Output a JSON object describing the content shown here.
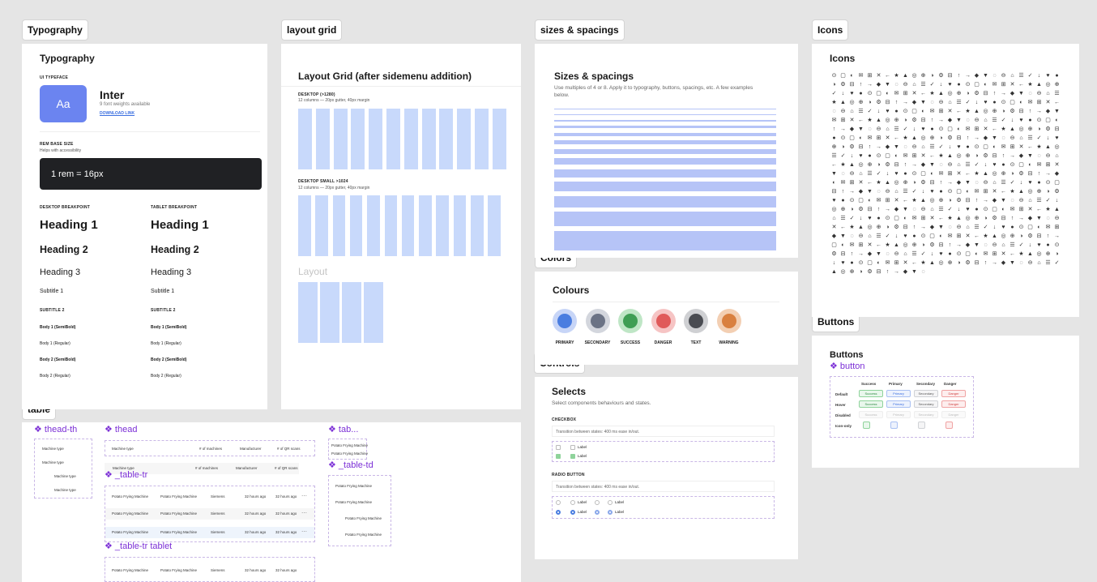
{
  "labels": {
    "typography": "Typography",
    "layout_grid": "layout grid",
    "sizes": "sizes & spacings",
    "icons": "Icons",
    "colors": "Colors",
    "controls": "Controls",
    "buttons": "Buttons",
    "table": "table"
  },
  "typography": {
    "title": "Typography",
    "ui_typeface": "UI TYPEFACE",
    "aa": "Aa",
    "font_name": "Inter",
    "font_weights": "9 font weights available",
    "download": "DOWNLOAD LINK",
    "rem_title": "REM BASE SIZE",
    "rem_sub": "Helps with accessibility",
    "rem_value": "1 rem  = 16px",
    "desktop_bp": "DESKTOP BREAKPOINT",
    "tablet_bp": "TABLET BREAKPOINT",
    "h1": "Heading 1",
    "h2": "Heading 2",
    "h3": "Heading 3",
    "subtitle1": "Subtitle 1",
    "subtitle2": "SUBTITLE 2",
    "body1_semibold": "Body 1 (SemiBold)",
    "body1_regular": "Body 1 (Regular)",
    "body2_semibold": "Body 2 (SemiBold)",
    "body2_regular": "Body 2 (Regular)"
  },
  "layout_grid": {
    "title": "Layout Grid (after sidemenu addition)",
    "desktop": "DESKTOP (>1280)",
    "desktop_desc": "12 columns — 20px gutter, 40px margin",
    "desktop_small": "DESKTOP SMALL >1024",
    "desktop_small_desc": "12 columns — 20px gutter, 40px margin",
    "layout": "Layout"
  },
  "sizes": {
    "title": "Sizes & spacings",
    "desc": "Use multiples of 4 or 8. Apply it to typography, buttons, spacings, etc. A few examples below."
  },
  "icons": {
    "title": "Icons",
    "glyphs": [
      "⊙",
      "◎",
      "◌",
      "▢",
      "⊕",
      "⊖",
      "◐",
      "◑",
      "⌂",
      "✉",
      "⚙",
      "☰",
      "⊞",
      "⊟",
      "✓",
      "✕",
      "↑",
      "↓",
      "←",
      "→",
      "♥",
      "★",
      "◆",
      "●",
      "▲",
      "▼"
    ]
  },
  "colors": {
    "title": "Colours",
    "items": [
      {
        "name": "PRIMARY",
        "ring": "#c7d5f7",
        "core": "#4a7de0"
      },
      {
        "name": "SECONDARY",
        "ring": "#d3d6dd",
        "core": "#6b7385"
      },
      {
        "name": "SUCCESS",
        "ring": "#bfe6c6",
        "core": "#3f9e54"
      },
      {
        "name": "DANGER",
        "ring": "#f6c4c4",
        "core": "#e05a5a"
      },
      {
        "name": "TEXT",
        "ring": "#cfd0d3",
        "core": "#4a4c52"
      },
      {
        "name": "WARNING",
        "ring": "#f3cfb3",
        "core": "#d9803f"
      }
    ]
  },
  "controls": {
    "title": "Selects",
    "desc": "Select components behaviours and states.",
    "checkbox": "CHECKBOX",
    "transition": "Transition between states: 400 ms ease in/out.",
    "radio": "RADIO BUTTON",
    "label": "Label"
  },
  "buttons": {
    "title": "Buttons",
    "component": "button",
    "cols": [
      "Success",
      "Primary",
      "Secondary",
      "Danger"
    ],
    "rows": [
      "Default",
      "Hover",
      "Disabled",
      "Icon-only"
    ]
  },
  "table": {
    "thead_th": "thead-th",
    "thead": "thead",
    "tab": "tab...",
    "table_tr": "_table-tr",
    "table_td": "_table-td",
    "table_tr_tablet": "_table-tr tablet",
    "machine_type": "Machine type",
    "machines": "# of machines",
    "manufacturer": "Manufacturer",
    "qr": "# of QR scans",
    "potato": "Potato Frying Machine",
    "siemens": "Siemens",
    "ago": "32 hours ago"
  }
}
